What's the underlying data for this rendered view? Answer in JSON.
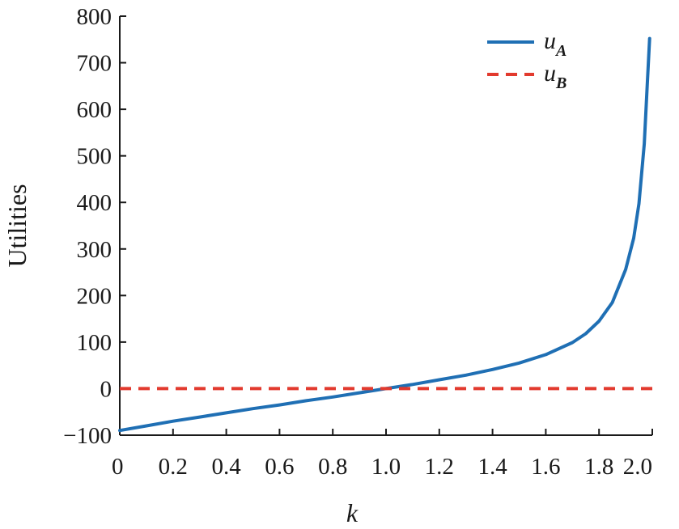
{
  "chart_data": {
    "type": "line",
    "title": "",
    "xlabel": "k",
    "ylabel": "Utilities",
    "xlim": [
      0,
      2.0
    ],
    "ylim": [
      -100,
      800
    ],
    "xticks": [
      "0",
      "0.2",
      "0.4",
      "0.6",
      "0.8",
      "1.0",
      "1.2",
      "1.4",
      "1.6",
      "1.8",
      "2.0"
    ],
    "yticks": [
      "−100",
      "0",
      "100",
      "200",
      "300",
      "400",
      "500",
      "600",
      "700",
      "800"
    ],
    "grid": false,
    "legend_position": "top-right",
    "series": [
      {
        "name": "u",
        "subscript": "A",
        "color": "#1f6fb4",
        "style": "solid",
        "x": [
          0,
          0.1,
          0.2,
          0.3,
          0.4,
          0.5,
          0.6,
          0.7,
          0.8,
          0.9,
          1.0,
          1.1,
          1.2,
          1.3,
          1.4,
          1.5,
          1.6,
          1.7,
          1.75,
          1.8,
          1.85,
          1.9,
          1.93,
          1.95,
          1.97,
          1.98,
          1.99
        ],
        "y": [
          -90,
          -80,
          -70,
          -61,
          -52,
          -43,
          -35,
          -26,
          -18,
          -9,
          0,
          9,
          19,
          29,
          41,
          55,
          73,
          99,
          118,
          145,
          185,
          256,
          323,
          397,
          526,
          640,
          752
        ]
      },
      {
        "name": "u",
        "subscript": "B",
        "color": "#e23a2e",
        "style": "dashed",
        "x": [
          0,
          2.0
        ],
        "y": [
          0,
          0
        ]
      }
    ]
  }
}
